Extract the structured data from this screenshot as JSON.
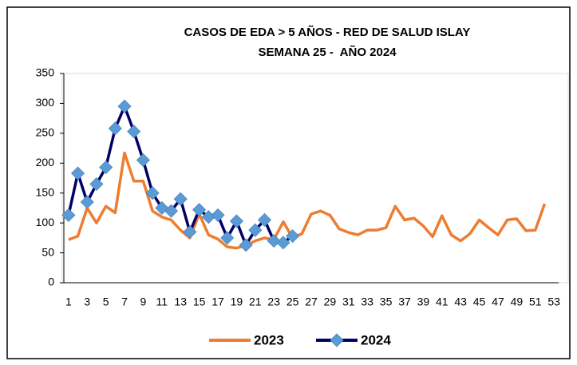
{
  "chart_data": {
    "type": "line",
    "title": "CASOS DE EDA > 5 AÑOS - RED DE SALUD ISLAY",
    "subtitle": "SEMANA 25 -  AÑO 2024",
    "categories": [
      1,
      null,
      3,
      null,
      5,
      null,
      7,
      null,
      9,
      null,
      11,
      null,
      13,
      null,
      15,
      null,
      17,
      null,
      19,
      null,
      21,
      null,
      23,
      null,
      25,
      null,
      27,
      null,
      29,
      null,
      31,
      null,
      33,
      null,
      35,
      null,
      37,
      null,
      39,
      null,
      41,
      null,
      43,
      null,
      45,
      null,
      47,
      null,
      49,
      null,
      51,
      null,
      53
    ],
    "series": [
      {
        "name": "2023",
        "color": "#ed7d31",
        "marker": false,
        "values": [
          72,
          78,
          125,
          100,
          128,
          117,
          217,
          170,
          170,
          120,
          110,
          105,
          88,
          75,
          115,
          80,
          73,
          60,
          58,
          62,
          70,
          75,
          72,
          102,
          75,
          82,
          115,
          120,
          113,
          90,
          84,
          80,
          88,
          88,
          92,
          128,
          105,
          108,
          95,
          77,
          112,
          80,
          70,
          82,
          105,
          92,
          80,
          105,
          107,
          87,
          88,
          132,
          null
        ]
      },
      {
        "name": "2024",
        "color": "#000066",
        "marker": true,
        "marker_color": "#5b9bd5",
        "values": [
          113,
          183,
          135,
          165,
          193,
          258,
          295,
          253,
          205,
          150,
          125,
          120,
          140,
          85,
          122,
          110,
          113,
          75,
          103,
          63,
          88,
          105,
          70,
          67,
          78,
          null,
          null,
          null,
          null,
          null,
          null,
          null,
          null,
          null,
          null,
          null,
          null,
          null,
          null,
          null,
          null,
          null,
          null,
          null,
          null,
          null,
          null,
          null,
          null,
          null,
          null,
          null,
          null
        ]
      }
    ],
    "ylim": [
      0,
      350
    ],
    "yticks": [
      0,
      50,
      100,
      150,
      200,
      250,
      300,
      350
    ],
    "grid": false,
    "legend": "bottom"
  }
}
